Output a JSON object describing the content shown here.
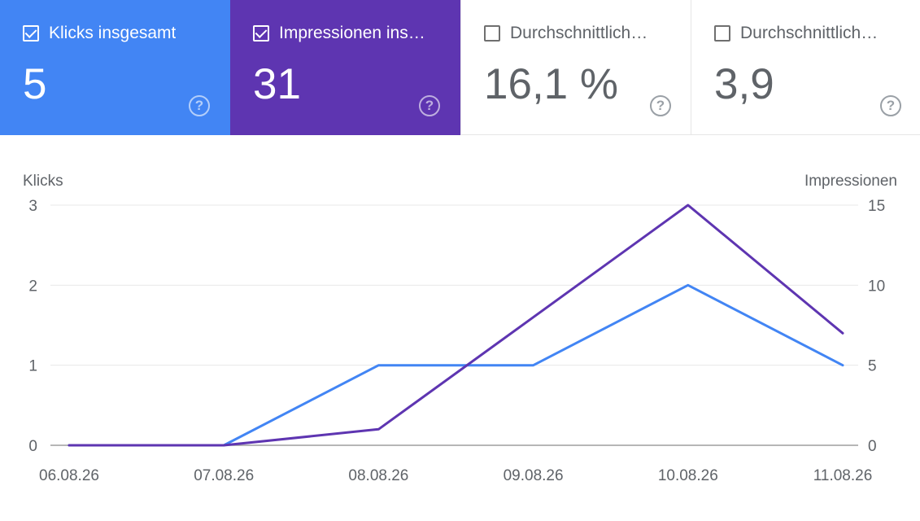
{
  "cards": [
    {
      "title": "Klicks insgesamt",
      "value": "5",
      "checked": true,
      "color": "#4285f4",
      "help": "?"
    },
    {
      "title": "Impressionen ins…",
      "value": "31",
      "checked": true,
      "color": "#5e35b1",
      "help": "?"
    },
    {
      "title": "Durchschnittlich…",
      "value": "16,1 %",
      "checked": false,
      "color": "#ffffff",
      "help": "?"
    },
    {
      "title": "Durchschnittlich…",
      "value": "3,9",
      "checked": false,
      "color": "#ffffff",
      "help": "?"
    }
  ],
  "chart_data": {
    "type": "line",
    "x": [
      "06.08.26",
      "07.08.26",
      "08.08.26",
      "09.08.26",
      "10.08.26",
      "11.08.26"
    ],
    "y_left_label": "Klicks",
    "y_right_label": "Impressionen",
    "y_left_ticks": [
      0,
      1,
      2,
      3
    ],
    "y_right_ticks": [
      0,
      5,
      10,
      15
    ],
    "y_left_lim": [
      0,
      3
    ],
    "y_right_lim": [
      0,
      15
    ],
    "series": [
      {
        "axis": "left",
        "color": "#4285f4",
        "values": [
          0,
          0,
          1,
          1,
          2,
          1
        ]
      },
      {
        "axis": "right",
        "color": "#5e35b1",
        "values": [
          0,
          0,
          1,
          8,
          15,
          7
        ]
      }
    ],
    "grid": true
  }
}
